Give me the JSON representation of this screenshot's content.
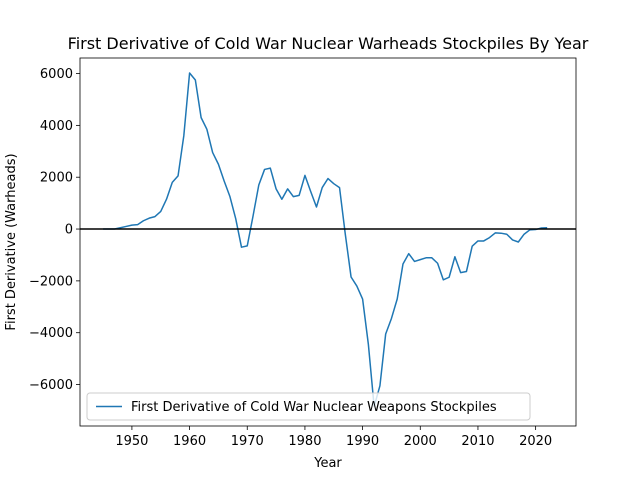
{
  "chart_data": {
    "type": "line",
    "title": "First Derivative of Cold War Nuclear Warheads Stockpiles By Year",
    "xlabel": "Year",
    "ylabel": "First Derivative (Warheads)",
    "xlim": [
      1941,
      2027
    ],
    "ylim": [
      -7600,
      6600
    ],
    "xticks": [
      1950,
      1960,
      1970,
      1980,
      1990,
      2000,
      2010,
      2020
    ],
    "yticks": [
      -6000,
      -4000,
      -2000,
      0,
      2000,
      4000,
      6000
    ],
    "ytick_labels": [
      "−6000",
      "−4000",
      "−2000",
      "0",
      "2000",
      "4000",
      "6000"
    ],
    "grid": false,
    "legend_position": "lower-left",
    "reference_line": {
      "y": 0,
      "color": "#000000"
    },
    "series": [
      {
        "name": "First Derivative of Cold War Nuclear Weapons Stockpiles",
        "color": "#1f77b4",
        "x": [
          1945,
          1946,
          1947,
          1948,
          1949,
          1950,
          1951,
          1952,
          1953,
          1954,
          1955,
          1956,
          1957,
          1958,
          1959,
          1960,
          1961,
          1962,
          1963,
          1964,
          1965,
          1966,
          1967,
          1968,
          1969,
          1970,
          1971,
          1972,
          1973,
          1974,
          1975,
          1976,
          1977,
          1978,
          1979,
          1980,
          1981,
          1982,
          1983,
          1984,
          1985,
          1986,
          1987,
          1988,
          1989,
          1990,
          1991,
          1992,
          1993,
          1994,
          1995,
          1996,
          1997,
          1998,
          1999,
          2000,
          2001,
          2002,
          2003,
          2004,
          2005,
          2006,
          2007,
          2008,
          2009,
          2010,
          2011,
          2012,
          2013,
          2014,
          2015,
          2016,
          2017,
          2018,
          2019,
          2020,
          2021,
          2022
        ],
        "y": [
          0,
          0,
          0,
          50,
          100,
          150,
          170,
          320,
          420,
          480,
          680,
          1150,
          1800,
          2050,
          3600,
          6020,
          5750,
          4300,
          3850,
          2950,
          2500,
          1850,
          1250,
          400,
          -700,
          -650,
          500,
          1700,
          2300,
          2350,
          1550,
          1150,
          1550,
          1250,
          1300,
          2070,
          1450,
          850,
          1600,
          1950,
          1750,
          1600,
          -200,
          -1850,
          -2200,
          -2700,
          -4450,
          -6850,
          -6050,
          -4050,
          -3450,
          -2700,
          -1350,
          -950,
          -1250,
          -1180,
          -1110,
          -1110,
          -1320,
          -1960,
          -1860,
          -1070,
          -1680,
          -1640,
          -660,
          -460,
          -460,
          -330,
          -150,
          -160,
          -200,
          -420,
          -500,
          -200,
          -30,
          -20,
          40,
          50
        ]
      }
    ]
  }
}
